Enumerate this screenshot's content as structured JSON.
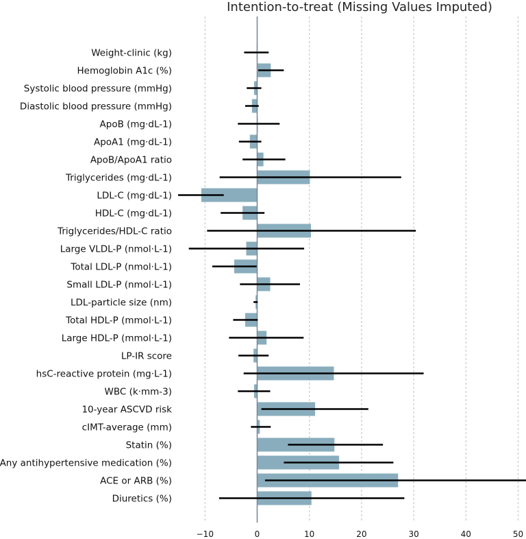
{
  "chart_data": {
    "type": "bar",
    "title": "Intention-to-treat (Missing Values Imputed)",
    "xlabel": "",
    "ylabel": "",
    "xlim": [
      -15.5,
      52.5
    ],
    "xticks": [
      -10,
      0,
      10,
      20,
      30,
      40,
      50
    ],
    "grid": true,
    "orientation": "horizontal",
    "colors": {
      "bar": "#89adbd",
      "error": "#000000",
      "grid": "#c8c8c8",
      "zero": "#7a8a99"
    },
    "categories": [
      "Weight-clinic (kg)",
      "Hemoglobin A1c (%)",
      "Systolic blood pressure (mmHg)",
      "Diastolic blood pressure (mmHg)",
      "ApoB (mg·dL-1)",
      "ApoA1 (mg·dL-1)",
      "ApoB/ApoA1 ratio",
      "Triglycerides (mg·dL-1)",
      "LDL-C (mg·dL-1)",
      "HDL-C (mg·dL-1)",
      "Triglycerides/HDL-C ratio",
      "Large VLDL-P (nmol·L-1)",
      "Total LDL-P (nmol·L-1)",
      "Small LDL-P (nmol·L-1)",
      "LDL-particle size (nm)",
      "Total HDL-P (mmol·L-1)",
      "Large HDL-P (mmol·L-1)",
      "LP-IR score",
      "hsC-reactive protein (mg·L-1)",
      "WBC (k·mm-3)",
      "10-year ASCVD risk",
      "cIMT-average (mm)",
      "Statin (%)",
      "Any antihypertensive medication (%)",
      "ACE or ARB (%)",
      "Diuretics (%)"
    ],
    "values": [
      -0.1,
      2.6,
      -0.6,
      -1.0,
      0.1,
      -1.4,
      1.2,
      10.1,
      -10.7,
      -2.8,
      10.3,
      -2.1,
      -4.4,
      2.5,
      -0.3,
      -2.3,
      1.8,
      -0.7,
      14.7,
      -0.6,
      11.1,
      0.5,
      14.8,
      15.7,
      27.0,
      10.4
    ],
    "ci_low": [
      -2.5,
      0.2,
      -2.0,
      -2.3,
      -3.7,
      -3.5,
      -2.8,
      -7.2,
      -15.3,
      -7.0,
      -9.6,
      -13.1,
      -8.6,
      -3.3,
      -0.7,
      -4.6,
      -5.4,
      -3.6,
      -2.6,
      -3.7,
      0.8,
      -1.2,
      5.9,
      5.1,
      1.5,
      -7.3
    ],
    "ci_high": [
      2.2,
      5.1,
      0.8,
      0.3,
      4.3,
      0.8,
      5.4,
      27.6,
      -6.4,
      1.4,
      30.4,
      9.0,
      -0.1,
      8.2,
      0.1,
      0.1,
      8.9,
      2.2,
      31.9,
      2.5,
      21.3,
      2.6,
      24.1,
      26.1,
      52.5,
      28.2
    ]
  }
}
